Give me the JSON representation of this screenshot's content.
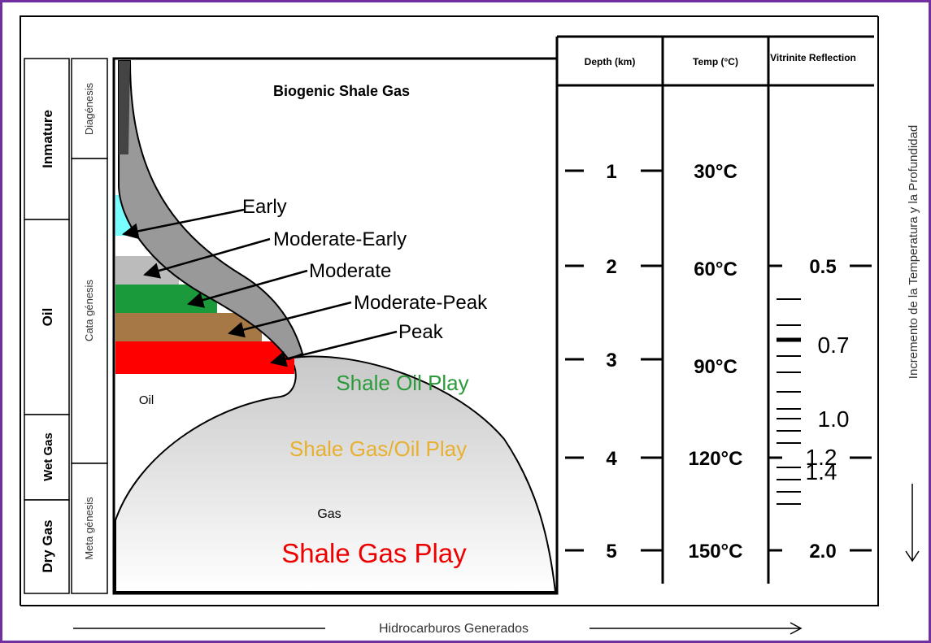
{
  "stages": [
    "Inmature",
    "Oil",
    "Wet Gas",
    "Dry Gas"
  ],
  "genesis": [
    "Diagénesis",
    "Cata génesis",
    "Meta génesis"
  ],
  "panel": {
    "title": "Biogenic Shale Gas",
    "maturity": [
      "Early",
      "Moderate-Early",
      "Moderate",
      "Moderate-Peak",
      "Peak"
    ],
    "shale_oil": "Shale Oil Play",
    "oil": "Oil",
    "shale_gas_oil": "Shale Gas/Oil Play",
    "gas": "Gas",
    "shale_gas": "Shale Gas Play"
  },
  "table": {
    "headers": [
      "Depth (km)",
      "Temp (°C)",
      "Vitrinite Reflection"
    ],
    "depth": [
      "1",
      "2",
      "3",
      "4",
      "5"
    ],
    "temp": [
      "30°C",
      "60°C",
      "90°C",
      "120°C",
      "150°C"
    ],
    "vitrinite": [
      "0.5",
      "0.7",
      "1.0",
      "1.2",
      "1.4",
      "2.0"
    ]
  },
  "side_label": "Incremento de la Temperatura  y la Profundidad",
  "bottom_label": "Hidrocarburos Generados"
}
